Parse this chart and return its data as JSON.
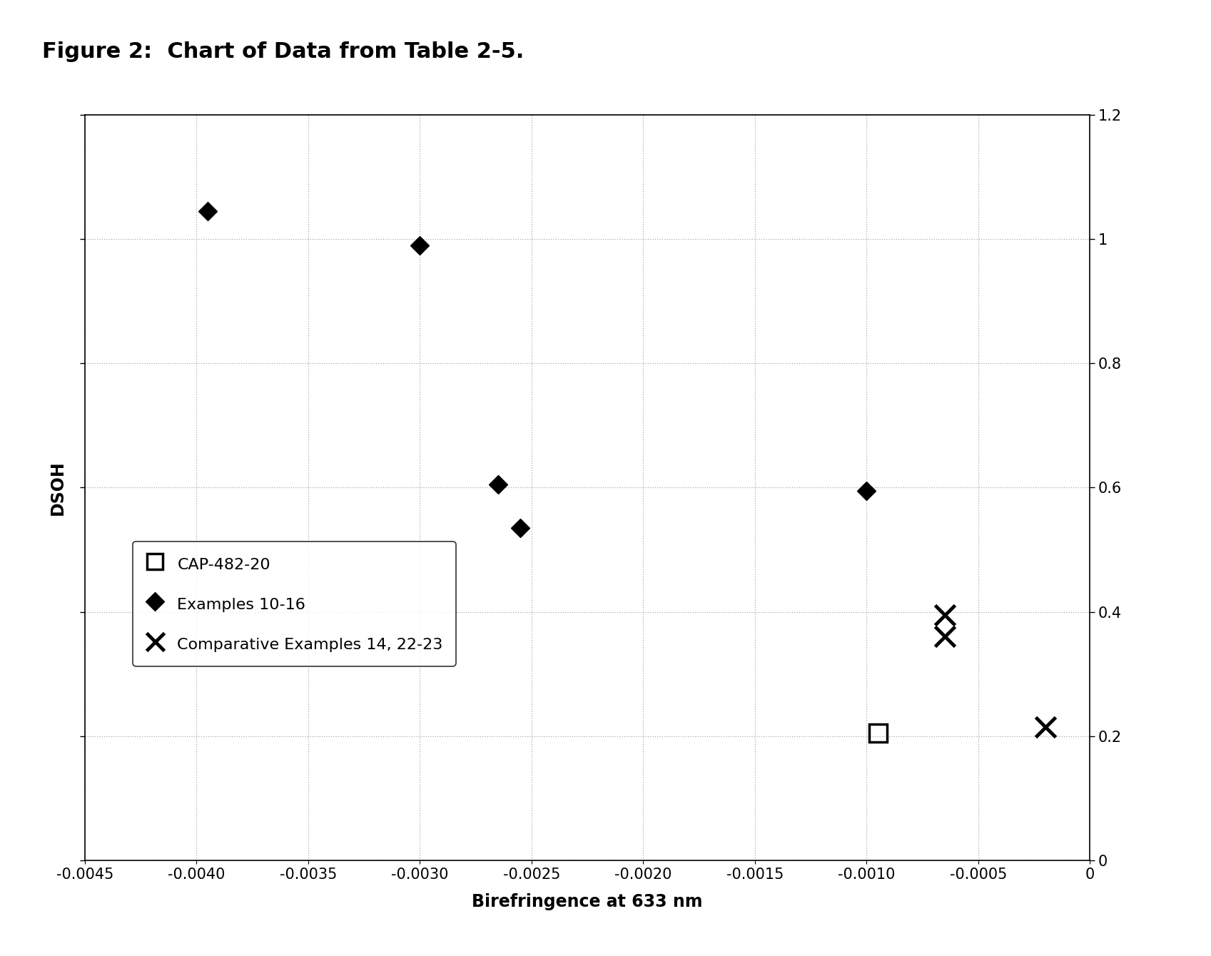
{
  "title": "Figure 2:  Chart of Data from Table 2-5.",
  "xlabel": "Birefringence at 633 nm",
  "ylabel": "DSOH",
  "xlim": [
    -0.0045,
    0.0
  ],
  "ylim": [
    0,
    1.2
  ],
  "xticks": [
    -0.0045,
    -0.004,
    -0.0035,
    -0.003,
    -0.0025,
    -0.002,
    -0.0015,
    -0.001,
    -0.0005,
    0
  ],
  "yticks": [
    0,
    0.2,
    0.4,
    0.6,
    0.8,
    1.0,
    1.2
  ],
  "diamond_points": [
    [
      -0.00395,
      1.045
    ],
    [
      -0.003,
      0.99
    ],
    [
      -0.00265,
      0.605
    ],
    [
      -0.00255,
      0.535
    ],
    [
      -0.001,
      0.595
    ]
  ],
  "cross_points": [
    [
      -0.00065,
      0.395
    ],
    [
      -0.00065,
      0.36
    ],
    [
      -0.0002,
      0.215
    ]
  ],
  "square_points": [
    [
      -0.00095,
      0.205
    ]
  ],
  "legend_labels": [
    "CAP-482-20",
    "Examples 10-16",
    "Comparative Examples 14, 22-23"
  ],
  "background_color": "#ffffff",
  "grid_color": "#aaaaaa",
  "marker_color": "#000000",
  "title_fontsize": 22,
  "label_fontsize": 17,
  "tick_fontsize": 15,
  "legend_fontsize": 16
}
